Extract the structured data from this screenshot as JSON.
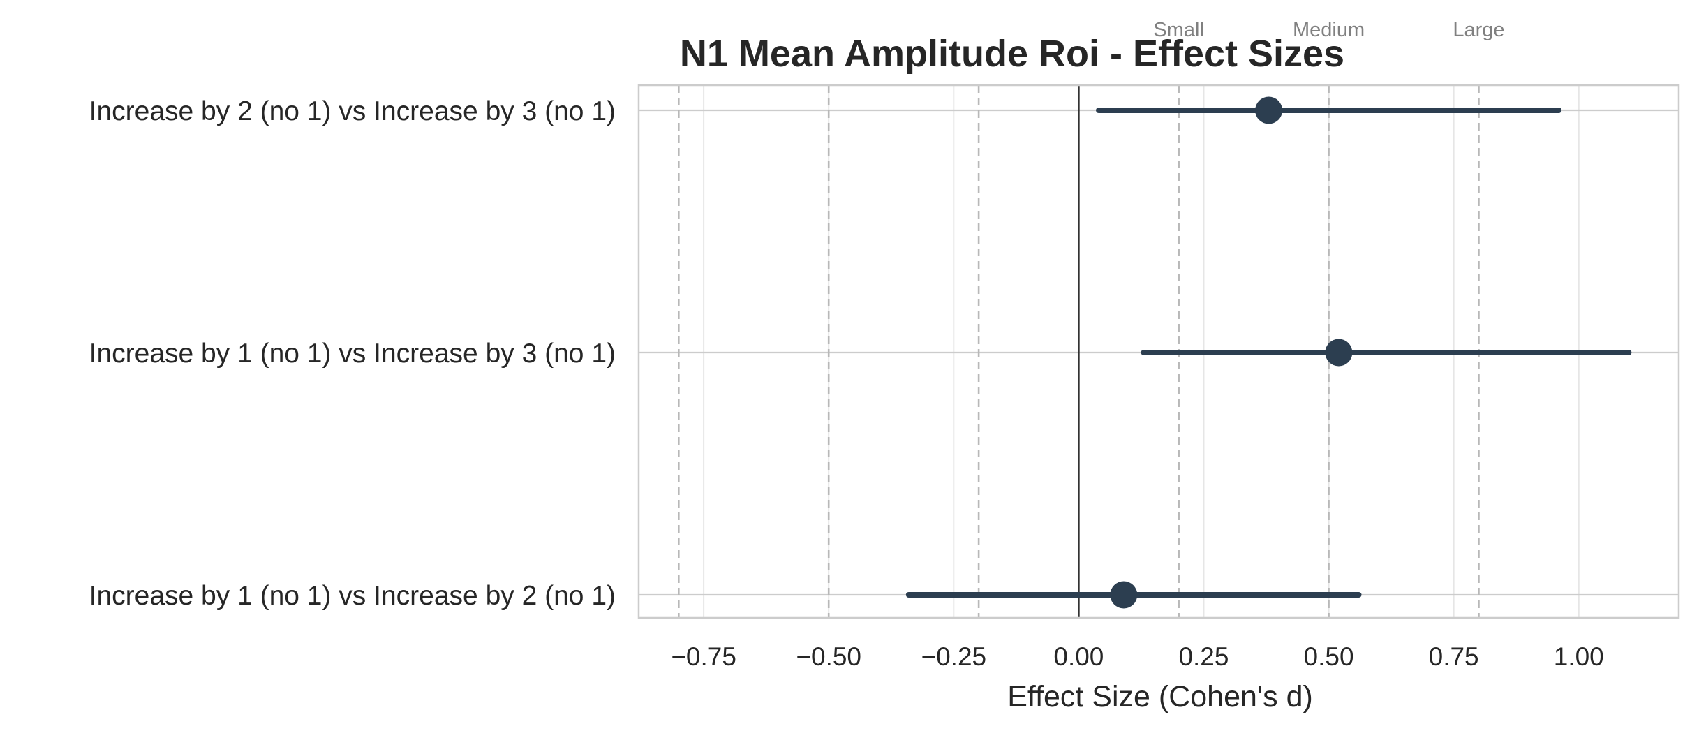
{
  "chart_data": {
    "type": "forest",
    "title": "N1 Mean Amplitude Roi - Effect Sizes",
    "xlabel": "Effect Size (Cohen's d)",
    "ylabel": "",
    "xlim": [
      -0.88,
      1.2
    ],
    "xticks": [
      -0.75,
      -0.5,
      -0.25,
      0.0,
      0.25,
      0.5,
      0.75,
      1.0
    ],
    "xtick_labels": [
      "−0.75",
      "−0.50",
      "−0.25",
      "0.00",
      "0.25",
      "0.50",
      "0.75",
      "1.00"
    ],
    "grid": true,
    "comparisons": [
      {
        "label": "Increase by 2 (no 1) vs Increase by 3 (no 1)",
        "d": 0.38,
        "ci": [
          0.04,
          0.96
        ]
      },
      {
        "label": "Increase by 1 (no 1) vs Increase by 3 (no 1)",
        "d": 0.52,
        "ci": [
          0.13,
          1.1
        ]
      },
      {
        "label": "Increase by 1 (no 1) vs Increase by 2 (no 1)",
        "d": 0.09,
        "ci": [
          -0.34,
          0.56
        ]
      }
    ],
    "zero_line": 0,
    "reference_lines": [
      {
        "label": "Small",
        "value": 0.2
      },
      {
        "label": "Medium",
        "value": 0.5
      },
      {
        "label": "Large",
        "value": 0.8
      },
      {
        "label": "",
        "value": -0.2
      },
      {
        "label": "",
        "value": -0.5
      },
      {
        "label": "",
        "value": -0.8
      }
    ],
    "colors": {
      "marker": "#2c3e50",
      "zero_line": "#333333",
      "reference": "#b8b8b8",
      "grid": "#e6e6e6",
      "frame": "#cccccc",
      "text": "#262626",
      "ref_label": "#808080"
    }
  }
}
